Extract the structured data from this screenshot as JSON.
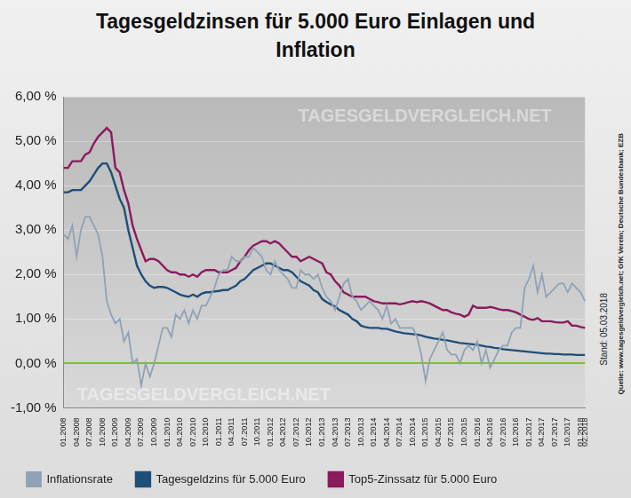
{
  "chart_data": {
    "type": "line",
    "title": "Tagesgeldzinsen für 5.000 Euro Einlagen und Inflation",
    "annotations": [
      "Stand: 05.03.2018",
      "Quelle: www.tagesgeldvergleich.net; GfK Verein; Deutsche Bundesbank; EZB"
    ],
    "watermark": "TAGESGELDVERGLEICH.NET",
    "categories": [
      "01.2008",
      null,
      null,
      "04.2008",
      null,
      null,
      "07.2008",
      null,
      null,
      "10.2008",
      null,
      null,
      "01.2009",
      null,
      null,
      "04.2009",
      null,
      null,
      "07.2009",
      null,
      null,
      "10.2009",
      null,
      null,
      "01.2010",
      null,
      null,
      "04.2010",
      null,
      null,
      "07.2010",
      null,
      null,
      "10.2010",
      null,
      null,
      "01.2011",
      null,
      null,
      "04.2011",
      null,
      null,
      "07.2011",
      null,
      null,
      "10.2011",
      null,
      null,
      "01.2012",
      null,
      null,
      "04.2012",
      null,
      null,
      "07.2012",
      null,
      null,
      "10.2012",
      null,
      null,
      "01.2013",
      null,
      null,
      "04.2013",
      null,
      null,
      "07.2013",
      null,
      null,
      "10.2013",
      null,
      null,
      "01.2014",
      null,
      null,
      "04.2014",
      null,
      null,
      "07.2014",
      null,
      null,
      "10.2014",
      null,
      null,
      "01.2015",
      null,
      null,
      "04.2015",
      null,
      null,
      "07.2015",
      null,
      null,
      "10.2015",
      null,
      null,
      "01.2016",
      null,
      null,
      "04.2016",
      null,
      null,
      "07.2016",
      null,
      null,
      "10.2016",
      null,
      null,
      "01.2017",
      null,
      null,
      "04.2017",
      null,
      null,
      "07.2017",
      null,
      null,
      "10.2017",
      null,
      null,
      "01.2018",
      "02.2018"
    ],
    "series": [
      {
        "name": "Inflationsrate",
        "color": "#8fa2b6",
        "values": [
          2.9,
          2.8,
          3.1,
          2.4,
          3.0,
          3.3,
          3.3,
          3.1,
          2.9,
          2.4,
          1.4,
          1.1,
          0.9,
          1.0,
          0.5,
          0.7,
          0.0,
          0.1,
          -0.5,
          0.0,
          -0.3,
          0.0,
          0.4,
          0.8,
          0.8,
          0.6,
          1.1,
          1.0,
          1.2,
          0.9,
          1.2,
          1.0,
          1.3,
          1.3,
          1.5,
          1.7,
          2.0,
          2.1,
          2.1,
          2.4,
          2.3,
          2.3,
          2.4,
          2.4,
          2.6,
          2.5,
          2.4,
          2.1,
          2.0,
          2.3,
          2.1,
          2.0,
          1.9,
          1.7,
          1.7,
          2.1,
          2.0,
          2.0,
          1.9,
          2.0,
          1.7,
          1.5,
          1.4,
          1.2,
          1.5,
          1.8,
          1.9,
          1.5,
          1.4,
          1.2,
          1.3,
          1.4,
          1.3,
          1.2,
          1.0,
          1.3,
          0.9,
          1.0,
          0.8,
          0.8,
          0.8,
          0.8,
          0.6,
          0.2,
          -0.4,
          0.1,
          0.3,
          0.5,
          0.7,
          0.3,
          0.2,
          0.2,
          0.0,
          0.3,
          0.4,
          0.3,
          0.5,
          0.0,
          0.3,
          -0.1,
          0.1,
          0.3,
          0.4,
          0.4,
          0.7,
          0.8,
          0.8,
          1.7,
          1.9,
          2.2,
          1.6,
          2.0,
          1.5,
          1.6,
          1.7,
          1.8,
          1.8,
          1.6,
          1.8,
          1.7,
          1.6,
          1.4
        ]
      },
      {
        "name": "Tagesgeldzins für 5.000 Euro",
        "color": "#1f4e79",
        "values": [
          3.85,
          3.85,
          3.9,
          3.9,
          3.9,
          4.0,
          4.1,
          4.25,
          4.4,
          4.5,
          4.5,
          4.3,
          4.0,
          3.7,
          3.5,
          3.0,
          2.6,
          2.2,
          2.0,
          1.85,
          1.75,
          1.7,
          1.72,
          1.72,
          1.7,
          1.65,
          1.6,
          1.55,
          1.52,
          1.5,
          1.55,
          1.5,
          1.57,
          1.6,
          1.6,
          1.62,
          1.63,
          1.65,
          1.65,
          1.7,
          1.75,
          1.85,
          1.9,
          2.0,
          2.1,
          2.15,
          2.2,
          2.25,
          2.25,
          2.2,
          2.15,
          2.1,
          2.1,
          2.05,
          1.95,
          1.85,
          1.8,
          1.75,
          1.65,
          1.6,
          1.45,
          1.38,
          1.33,
          1.28,
          1.2,
          1.15,
          1.1,
          1.0,
          0.95,
          0.85,
          0.82,
          0.8,
          0.8,
          0.8,
          0.78,
          0.78,
          0.75,
          0.72,
          0.7,
          0.68,
          0.67,
          0.66,
          0.65,
          0.63,
          0.6,
          0.58,
          0.56,
          0.55,
          0.53,
          0.52,
          0.5,
          0.48,
          0.46,
          0.45,
          0.44,
          0.43,
          0.42,
          0.4,
          0.38,
          0.37,
          0.35,
          0.34,
          0.32,
          0.31,
          0.3,
          0.29,
          0.28,
          0.27,
          0.26,
          0.25,
          0.24,
          0.23,
          0.22,
          0.22,
          0.21,
          0.21,
          0.2,
          0.2,
          0.2,
          0.19,
          0.19,
          0.19
        ]
      },
      {
        "name": "Top5-Zinssatz für 5.000 Euro",
        "color": "#8b1a5e",
        "values": [
          4.4,
          4.4,
          4.55,
          4.55,
          4.55,
          4.7,
          4.75,
          4.95,
          5.1,
          5.2,
          5.3,
          5.2,
          4.4,
          4.3,
          3.9,
          3.6,
          3.1,
          2.8,
          2.55,
          2.3,
          2.35,
          2.35,
          2.3,
          2.2,
          2.1,
          2.05,
          2.05,
          2.0,
          2.0,
          1.95,
          2.0,
          1.95,
          2.05,
          2.1,
          2.1,
          2.1,
          2.05,
          2.05,
          2.05,
          2.1,
          2.15,
          2.3,
          2.4,
          2.55,
          2.65,
          2.7,
          2.75,
          2.75,
          2.7,
          2.75,
          2.7,
          2.6,
          2.5,
          2.4,
          2.4,
          2.3,
          2.35,
          2.4,
          2.35,
          2.3,
          2.25,
          2.05,
          2.0,
          1.85,
          1.75,
          1.6,
          1.55,
          1.5,
          1.5,
          1.5,
          1.5,
          1.45,
          1.4,
          1.38,
          1.35,
          1.35,
          1.35,
          1.35,
          1.33,
          1.35,
          1.38,
          1.4,
          1.38,
          1.4,
          1.38,
          1.35,
          1.3,
          1.25,
          1.2,
          1.2,
          1.15,
          1.12,
          1.1,
          1.05,
          1.1,
          1.3,
          1.25,
          1.25,
          1.25,
          1.27,
          1.25,
          1.22,
          1.2,
          1.2,
          1.18,
          1.15,
          1.1,
          1.05,
          1.0,
          0.98,
          1.02,
          0.95,
          0.95,
          0.95,
          0.93,
          0.92,
          0.92,
          0.95,
          0.85,
          0.85,
          0.82,
          0.8
        ]
      }
    ],
    "ylim": [
      -1,
      6
    ],
    "yticks": [
      {
        "value": -1,
        "label": "-1,00 %"
      },
      {
        "value": 0,
        "label": "0,00 %"
      },
      {
        "value": 1,
        "label": "1,00 %"
      },
      {
        "value": 2,
        "label": "2,00 %"
      },
      {
        "value": 3,
        "label": "3,00 %"
      },
      {
        "value": 4,
        "label": "4,00 %"
      },
      {
        "value": 5,
        "label": "5,00 %"
      },
      {
        "value": 6,
        "label": "6,00 %"
      }
    ],
    "grid": true,
    "legend": "bottom"
  }
}
